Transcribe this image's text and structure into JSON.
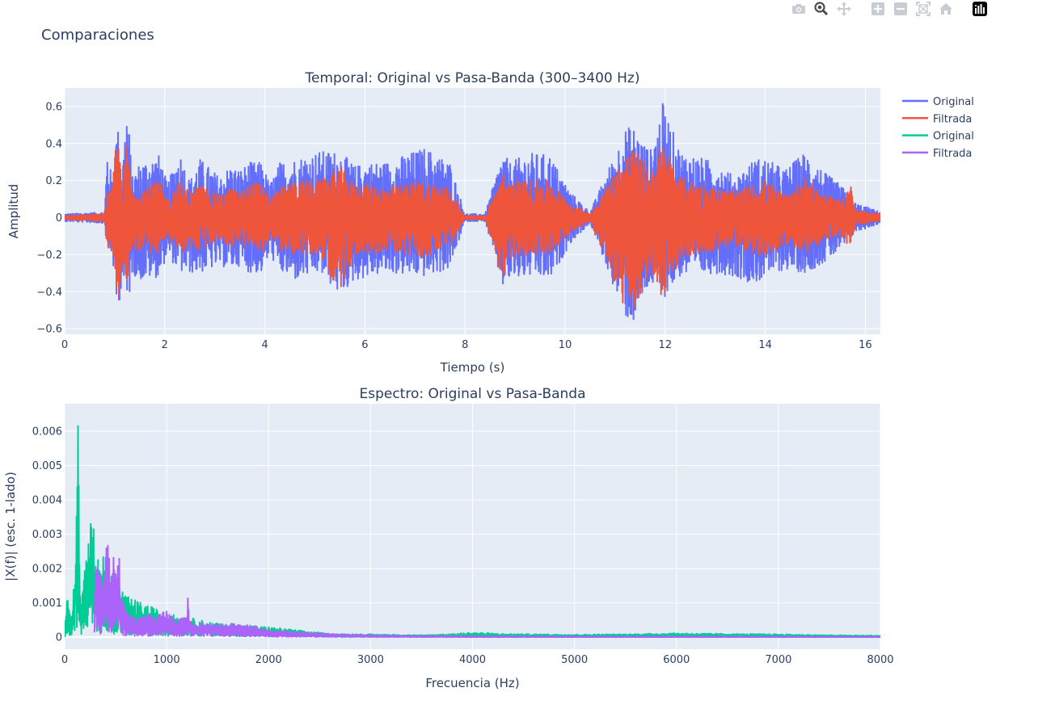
{
  "figure_title": "Comparaciones",
  "modebar": [
    {
      "name": "camera-icon"
    },
    {
      "name": "zoom-icon"
    },
    {
      "name": "pan-icon"
    },
    {
      "name": "zoom-in-icon"
    },
    {
      "name": "zoom-out-icon"
    },
    {
      "name": "autoscale-icon"
    },
    {
      "name": "reset-axes-icon"
    },
    {
      "name": "plotly-logo-icon"
    }
  ],
  "legend": [
    {
      "label": "Original",
      "color": "#636efa"
    },
    {
      "label": "Filtrada",
      "color": "#ef553b"
    },
    {
      "label": "Original",
      "color": "#00cc96"
    },
    {
      "label": "Filtrada",
      "color": "#ab63fa"
    }
  ],
  "chart_data": [
    {
      "type": "line",
      "title": "Temporal: Original vs Pasa-Banda (300–3400 Hz)",
      "xlabel": "Tiempo (s)",
      "ylabel": "Amplitud",
      "xlim": [
        0,
        16.3
      ],
      "ylim": [
        -0.63,
        0.7
      ],
      "xticks": [
        0,
        2,
        4,
        6,
        8,
        10,
        12,
        14,
        16
      ],
      "yticks": [
        -0.6,
        -0.4,
        -0.2,
        0,
        0.2,
        0.4,
        0.6
      ],
      "grid": true,
      "series": [
        {
          "name": "Original",
          "color": "#636efa",
          "envelope": {
            "t": [
              0,
              0.8,
              0.85,
              0.95,
              1.05,
              1.15,
              1.25,
              1.35,
              1.5,
              1.9,
              2.05,
              2.3,
              2.5,
              2.7,
              3.1,
              3.3,
              3.5,
              3.7,
              3.95,
              4.1,
              4.3,
              4.6,
              5.1,
              5.5,
              5.8,
              6.1,
              6.4,
              7.2,
              7.7,
              8.0,
              8.4,
              8.75,
              8.9,
              9.3,
              9.7,
              10.1,
              10.5,
              11.2,
              11.35,
              11.7,
              11.95,
              12.3,
              13.0,
              13.4,
              13.8,
              14.0,
              14.4,
              14.8,
              15.2,
              15.5,
              15.8,
              16.3
            ],
            "upper": [
              0.02,
              0.03,
              0.38,
              0.2,
              0.52,
              0.28,
              0.64,
              0.22,
              0.3,
              0.34,
              0.18,
              0.36,
              0.2,
              0.32,
              0.22,
              0.28,
              0.26,
              0.3,
              0.3,
              0.18,
              0.3,
              0.32,
              0.36,
              0.36,
              0.28,
              0.3,
              0.3,
              0.38,
              0.3,
              0.02,
              0.02,
              0.35,
              0.3,
              0.35,
              0.34,
              0.14,
              0.03,
              0.48,
              0.5,
              0.36,
              0.62,
              0.36,
              0.3,
              0.22,
              0.32,
              0.32,
              0.26,
              0.36,
              0.24,
              0.18,
              0.08,
              0.03
            ],
            "lower": [
              -0.02,
              -0.03,
              -0.2,
              -0.2,
              -0.56,
              -0.32,
              -0.52,
              -0.3,
              -0.34,
              -0.32,
              -0.2,
              -0.3,
              -0.3,
              -0.3,
              -0.26,
              -0.28,
              -0.26,
              -0.3,
              -0.3,
              -0.2,
              -0.3,
              -0.34,
              -0.3,
              -0.42,
              -0.34,
              -0.32,
              -0.3,
              -0.32,
              -0.28,
              -0.02,
              -0.02,
              -0.38,
              -0.34,
              -0.32,
              -0.34,
              -0.14,
              -0.03,
              -0.54,
              -0.58,
              -0.36,
              -0.44,
              -0.32,
              -0.3,
              -0.32,
              -0.36,
              -0.32,
              -0.28,
              -0.3,
              -0.24,
              -0.18,
              -0.08,
              -0.03
            ]
          }
        },
        {
          "name": "Filtrada",
          "color": "#ef553b",
          "envelope": {
            "t": [
              0,
              0.8,
              0.85,
              0.95,
              1.05,
              1.15,
              1.25,
              1.35,
              1.5,
              1.9,
              2.05,
              2.3,
              2.5,
              2.7,
              3.1,
              3.3,
              3.5,
              3.7,
              3.95,
              4.1,
              4.3,
              4.6,
              5.1,
              5.5,
              5.8,
              6.1,
              6.4,
              7.2,
              7.7,
              8.0,
              8.4,
              8.75,
              8.9,
              9.3,
              9.7,
              10.1,
              10.5,
              11.2,
              11.35,
              11.7,
              11.95,
              12.3,
              13.0,
              13.4,
              13.8,
              14.0,
              14.4,
              14.8,
              15.2,
              15.5,
              15.7,
              15.8,
              16.3
            ],
            "upper": [
              0.01,
              0.02,
              0.14,
              0.16,
              0.48,
              0.2,
              0.42,
              0.14,
              0.16,
              0.2,
              0.1,
              0.2,
              0.14,
              0.18,
              0.12,
              0.16,
              0.14,
              0.18,
              0.2,
              0.1,
              0.16,
              0.2,
              0.2,
              0.28,
              0.18,
              0.18,
              0.16,
              0.2,
              0.16,
              0.01,
              0.01,
              0.24,
              0.2,
              0.2,
              0.2,
              0.08,
              0.02,
              0.34,
              0.38,
              0.26,
              0.4,
              0.22,
              0.16,
              0.14,
              0.18,
              0.2,
              0.12,
              0.22,
              0.12,
              0.1,
              0.2,
              0.04,
              0.02
            ],
            "lower": [
              -0.01,
              -0.02,
              -0.16,
              -0.18,
              -0.52,
              -0.24,
              -0.44,
              -0.16,
              -0.18,
              -0.2,
              -0.1,
              -0.2,
              -0.16,
              -0.18,
              -0.12,
              -0.16,
              -0.14,
              -0.18,
              -0.2,
              -0.1,
              -0.18,
              -0.2,
              -0.2,
              -0.42,
              -0.2,
              -0.2,
              -0.18,
              -0.22,
              -0.16,
              -0.01,
              -0.01,
              -0.34,
              -0.22,
              -0.2,
              -0.2,
              -0.08,
              -0.02,
              -0.5,
              -0.56,
              -0.28,
              -0.44,
              -0.22,
              -0.18,
              -0.16,
              -0.2,
              -0.22,
              -0.14,
              -0.2,
              -0.12,
              -0.1,
              -0.16,
              -0.04,
              -0.02
            ]
          }
        }
      ]
    },
    {
      "type": "line",
      "title": "Espectro: Original vs Pasa-Banda",
      "xlabel": "Frecuencia (Hz)",
      "ylabel": "|X(f)| (esc. 1-lado)",
      "xlim": [
        0,
        8000
      ],
      "ylim": [
        -0.00035,
        0.0068
      ],
      "xticks": [
        0,
        1000,
        2000,
        3000,
        4000,
        5000,
        6000,
        7000,
        8000
      ],
      "yticks": [
        0,
        0.001,
        0.002,
        0.003,
        0.004,
        0.005,
        0.006
      ],
      "yticklabels": [
        "0",
        "0.001",
        "0.002",
        "0.003",
        "0.004",
        "0.005",
        "0.006"
      ],
      "grid": true,
      "series": [
        {
          "name": "Original",
          "color": "#00cc96",
          "envelope": {
            "f": [
              0,
              20,
              30,
              60,
              80,
              100,
              120,
              130,
              140,
              150,
              170,
              200,
              230,
              250,
              260,
              280,
              300,
              400,
              600,
              1000,
              1500,
              2000,
              2600,
              3200,
              3500,
              3800,
              4000,
              4300,
              5000,
              5500,
              6000,
              6500,
              7000,
              7500,
              8000
            ],
            "upper": [
              0.0001,
              0.0013,
              0.0011,
              0.0007,
              0.0009,
              0.0023,
              0.0047,
              0.0065,
              0.0046,
              0.0015,
              0.0012,
              0.0022,
              0.0028,
              0.0037,
              0.0032,
              0.0034,
              0.0025,
              0.0024,
              0.0012,
              0.0007,
              0.0004,
              0.0003,
              0.0001,
              8e-05,
              6e-05,
              0.0001,
              0.00014,
              0.0001,
              8e-05,
              9e-05,
              0.00012,
              0.0001,
              9e-05,
              6e-05,
              5e-05
            ]
          }
        },
        {
          "name": "Filtrada",
          "color": "#ab63fa",
          "envelope": {
            "f": [
              290,
              300,
              340,
              380,
              420,
              460,
              480,
              510,
              530,
              550,
              600,
              700,
              800,
              900,
              1000,
              1100,
              1200,
              1210,
              1230,
              1300,
              1500,
              1800,
              2000,
              2300,
              2600,
              3000,
              3400,
              4000,
              5000,
              6000,
              7000,
              8000
            ],
            "upper": [
              0.0002,
              0.0025,
              0.0018,
              0.0021,
              0.0028,
              0.0017,
              0.0024,
              0.0019,
              0.0031,
              0.0013,
              0.0008,
              0.0006,
              0.0007,
              0.0006,
              0.0008,
              0.0005,
              0.0006,
              0.0013,
              0.0005,
              0.0004,
              0.0004,
              0.0004,
              0.0002,
              0.00015,
              0.0001,
              6e-05,
              4e-05,
              3e-05,
              2e-05,
              2e-05,
              2e-05,
              1e-05
            ]
          }
        }
      ]
    }
  ]
}
